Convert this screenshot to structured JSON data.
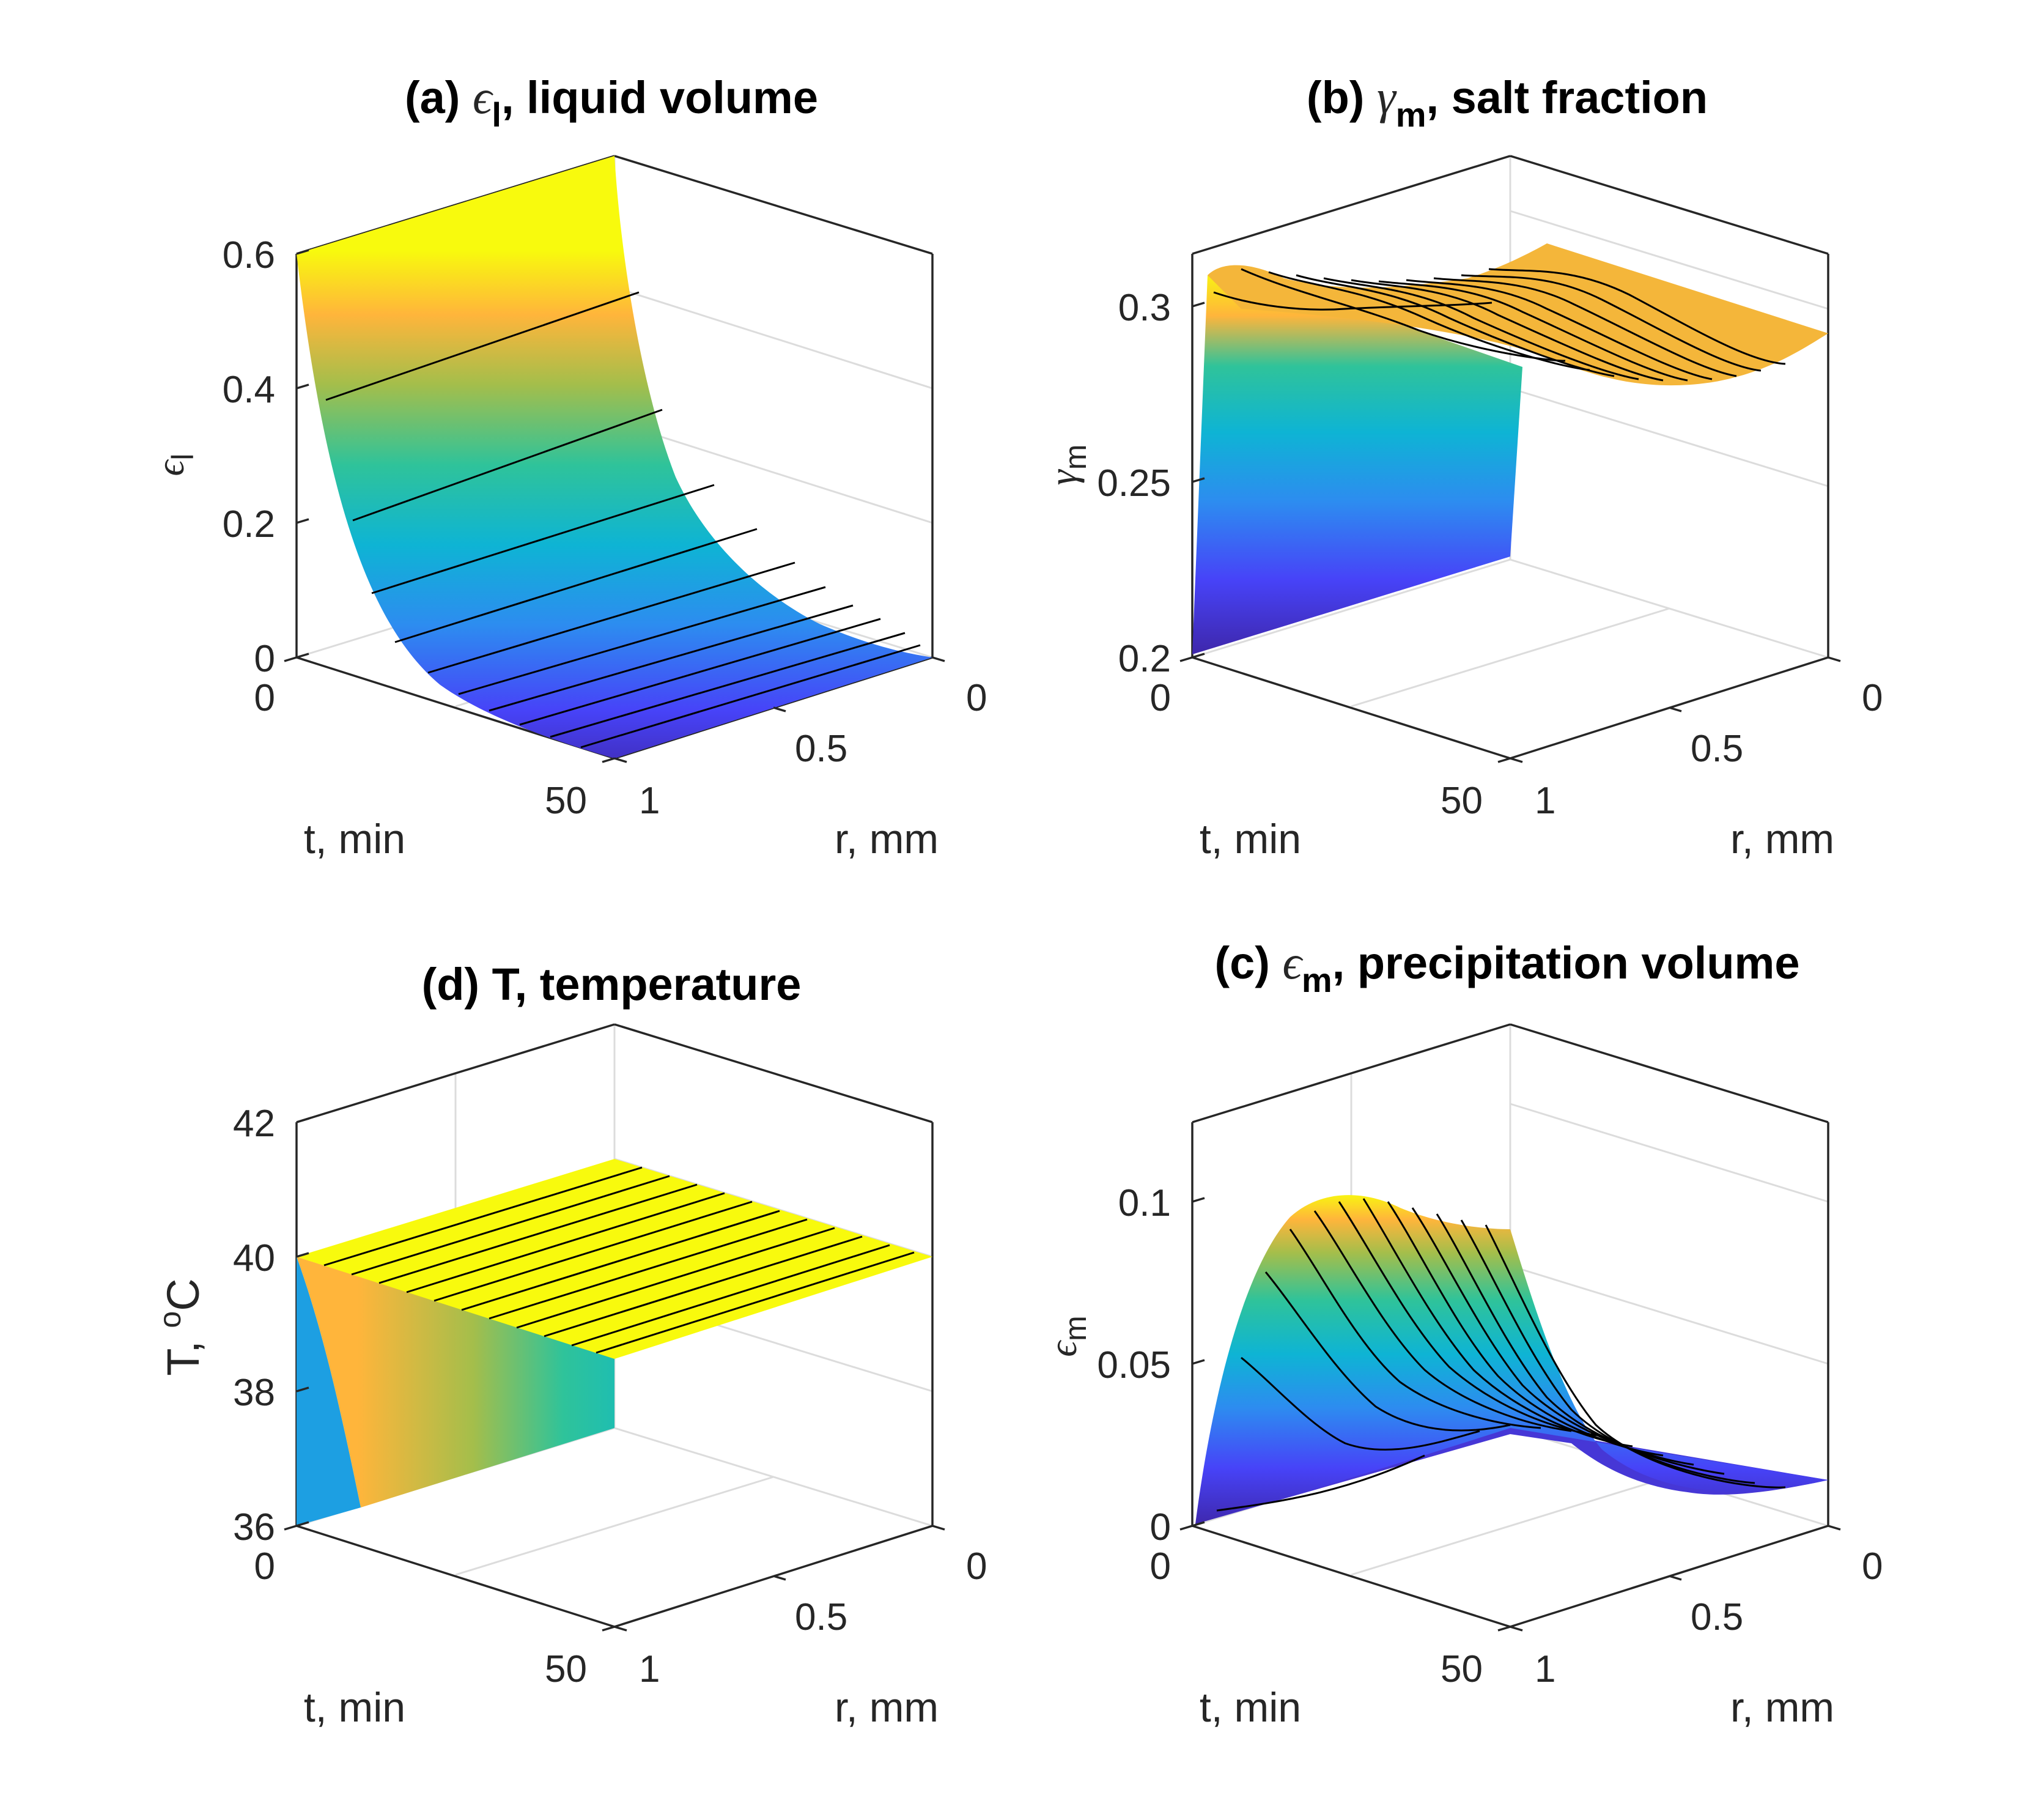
{
  "chart_data": [
    {
      "id": "a",
      "type": "surface",
      "title_prefix": "(a) ",
      "title_symbol": "ϵ",
      "title_sub": "l",
      "title_rest": ", liquid volume",
      "zlabel_symbol": "ϵ",
      "zlabel_sub": "l",
      "xlabel": "t, min",
      "ylabel": "r, mm",
      "x_range": [
        0,
        50
      ],
      "y_range": [
        0,
        1
      ],
      "z_range": [
        0,
        0.6
      ],
      "x_ticks": [
        0,
        50
      ],
      "y_ticks": [
        0,
        0.5,
        1
      ],
      "z_ticks": [
        0,
        0.2,
        0.4,
        0.6
      ],
      "x_tick_labels": [
        "0",
        "50"
      ],
      "y_tick_labels": [
        "0",
        "0.5",
        "1"
      ],
      "z_tick_labels": [
        "0",
        "0.2",
        "0.4",
        "0.6"
      ],
      "t_samples": [
        0,
        5,
        10,
        15,
        20,
        25,
        30,
        35,
        40,
        45,
        50
      ],
      "r_samples": [
        0,
        0.5,
        1
      ],
      "z_values_by_t": [
        0.6,
        0.37,
        0.225,
        0.137,
        0.083,
        0.05,
        0.03,
        0.018,
        0.011,
        0.007,
        0.004
      ],
      "z_varies_with_r": false
    },
    {
      "id": "b",
      "type": "surface",
      "title_prefix": "(b) ",
      "title_symbol": "γ",
      "title_sub": "m",
      "title_rest": ", salt fraction",
      "zlabel_symbol": "γ",
      "zlabel_sub": "m",
      "xlabel": "t, min",
      "ylabel": "r, mm",
      "x_range": [
        0,
        50
      ],
      "y_range": [
        0,
        1
      ],
      "z_range": [
        0.2,
        0.315
      ],
      "x_ticks": [
        0,
        50
      ],
      "y_ticks": [
        0,
        0.5,
        1
      ],
      "z_ticks": [
        0.2,
        0.25,
        0.3
      ],
      "x_tick_labels": [
        "0",
        "50"
      ],
      "y_tick_labels": [
        "0",
        "0.5",
        "1"
      ],
      "z_tick_labels": [
        "0.2",
        "0.25",
        "0.3"
      ],
      "t_samples": [
        0,
        5,
        10,
        15,
        20,
        25,
        30,
        35,
        40,
        45,
        50
      ],
      "r_samples": [
        0,
        0.1,
        0.2,
        0.3,
        0.4,
        0.5,
        0.6,
        0.7,
        0.8,
        0.9,
        1.0
      ],
      "z_at_r1_by_t": [
        0.2,
        0.307,
        0.305,
        0.303,
        0.301,
        0.299,
        0.297,
        0.295,
        0.294,
        0.293,
        0.292
      ],
      "z_at_r0_by_t": [
        0.302,
        0.301,
        0.3,
        0.299,
        0.298,
        0.297,
        0.296,
        0.295,
        0.294,
        0.293,
        0.292
      ],
      "z_min_dip": 0.293
    },
    {
      "id": "d",
      "type": "surface",
      "title_prefix": "(d) ",
      "title_symbol": "",
      "title_sub": "",
      "title_rest": "T, temperature",
      "zlabel_text": "T, ",
      "zlabel_sup": "o",
      "zlabel_unit": "C",
      "xlabel": "t, min",
      "ylabel": "r, mm",
      "x_range": [
        0,
        50
      ],
      "y_range": [
        0,
        1
      ],
      "z_range": [
        36,
        42
      ],
      "x_ticks": [
        0,
        50
      ],
      "y_ticks": [
        0,
        0.5,
        1
      ],
      "z_ticks": [
        36,
        38,
        40,
        42
      ],
      "x_tick_labels": [
        "0",
        "50"
      ],
      "y_tick_labels": [
        "0",
        "0.5",
        "1"
      ],
      "z_tick_labels": [
        "36",
        "38",
        "40",
        "42"
      ],
      "t_samples": [
        0,
        5,
        10,
        15,
        20,
        25,
        30,
        35,
        40,
        45,
        50
      ],
      "r_samples": [
        0,
        1
      ],
      "z_value": 40,
      "z_initial_at_r1": 36
    },
    {
      "id": "c",
      "type": "surface",
      "title_prefix": "(c) ",
      "title_symbol": "ϵ",
      "title_sub": "m",
      "title_rest": ", precipitation volume",
      "zlabel_symbol": "ϵ",
      "zlabel_sub": "m",
      "xlabel": "t, min",
      "ylabel": "r, mm",
      "x_range": [
        0,
        50
      ],
      "y_range": [
        0,
        1
      ],
      "z_range": [
        0,
        0.125
      ],
      "x_ticks": [
        0,
        50
      ],
      "y_ticks": [
        0,
        0.5,
        1
      ],
      "z_ticks": [
        0,
        0.05,
        0.1
      ],
      "x_tick_labels": [
        "0",
        "50"
      ],
      "y_tick_labels": [
        "0",
        "0.5",
        "1"
      ],
      "z_tick_labels": [
        "0",
        "0.05",
        "0.1"
      ],
      "t_samples": [
        0,
        5,
        10,
        15,
        20,
        25,
        30,
        35,
        40,
        45,
        50
      ],
      "r_samples": [
        0,
        0.1,
        0.2,
        0.3,
        0.4,
        0.5,
        0.6,
        0.7,
        0.8,
        0.9,
        1.0
      ],
      "z_at_r1_by_t": [
        0.0,
        0.048,
        0.075,
        0.09,
        0.097,
        0.1,
        0.1,
        0.099,
        0.097,
        0.095,
        0.093
      ],
      "z_at_r0_by_t": [
        0.0,
        0.0,
        0.0,
        0.0,
        0.0,
        0.0,
        0.0,
        0.0,
        0.0,
        0.0,
        0.0
      ],
      "z_dip": 0.004
    }
  ],
  "colormap": "parula",
  "colormap_stops": [
    "#3e26a8",
    "#4743f8",
    "#2d8cf0",
    "#0eb4d4",
    "#2fc39a",
    "#a4be4b",
    "#ffb53b",
    "#f8fa0d"
  ],
  "mesh_line_color": "#000000",
  "axis_color": "#262626",
  "grid_color": "#dcdcdc"
}
